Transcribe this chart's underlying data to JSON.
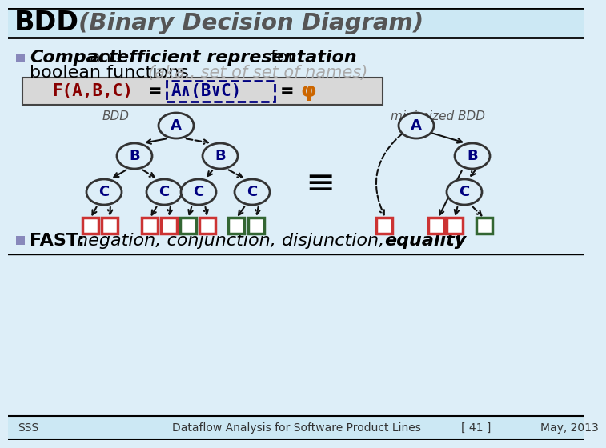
{
  "title_bdd": "BDD",
  "title_rest": " (Binary Decision Diagram)",
  "title_bg": "#cce8f4",
  "title_color_bdd": "#000000",
  "title_color_rest": "#555555",
  "body_bg": "#ddeef8",
  "bullet_color": "#8888bb",
  "text1_bold_italic": "Compact",
  "text1_normal": " and ",
  "text1_bold_italic2": "efficient representation",
  "text1_normal2": "  for",
  "text2_normal": "boolean functions ",
  "text2_gray": "(aka., set of set of names)",
  "formula_bg": "#d8d8d8",
  "formula_border": "#444444",
  "formula_F": "F(A,B,C)",
  "formula_phi_label": "A∧(B∨C)",
  "formula_F_color": "#880000",
  "formula_phi_color": "#cc6600",
  "formula_label_color": "#000080",
  "dashed_box_color": "#000080",
  "footer_bg": "#cce8f4",
  "footer_text": "Dataflow Analysis for Software Product Lines",
  "footer_left": "SSS",
  "footer_right": "May, 2013",
  "footer_num": "[ 41 ]",
  "fast_label": "FAST:",
  "fast_text": " negation, conjunction, disjunction, ",
  "fast_bold": "equality",
  "fast_excl": " !",
  "node_fill": "#ddeef8",
  "node_border": "#333333",
  "node_text_color": "#000080",
  "arrow_color": "#111111",
  "leaf_0_fill": "#ffffff",
  "leaf_0_border": "#cc3333",
  "leaf_1_fill": "#ffffff",
  "leaf_1_border": "#336633",
  "equiv_symbol": "≡",
  "bdd_label": "BDD",
  "min_bdd_label": "minimized BDD"
}
